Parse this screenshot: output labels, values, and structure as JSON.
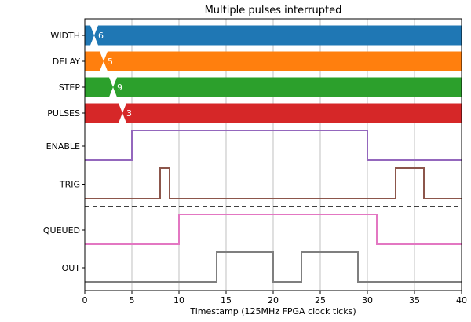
{
  "chart_data": {
    "type": "timing-diagram",
    "title": "Multiple pulses interrupted",
    "xlabel": "Timestamp (125MHz FPGA clock ticks)",
    "xlim": [
      0,
      40
    ],
    "xticks": [
      0,
      5,
      10,
      15,
      20,
      25,
      30,
      35,
      40
    ],
    "grid_x": true,
    "buses": [
      {
        "name": "WIDTH",
        "color": "#1f77b4",
        "transition_x": 1,
        "value": "6"
      },
      {
        "name": "DELAY",
        "color": "#ff7f0e",
        "transition_x": 2,
        "value": "5"
      },
      {
        "name": "STEP",
        "color": "#2ca02c",
        "transition_x": 3,
        "value": "9"
      },
      {
        "name": "PULSES",
        "color": "#d62728",
        "transition_x": 4,
        "value": "3"
      }
    ],
    "signals_before_divider": [
      {
        "name": "ENABLE",
        "color": "#9467bd",
        "steps": [
          [
            0,
            0
          ],
          [
            5,
            1
          ],
          [
            30,
            0
          ],
          [
            40,
            0
          ]
        ]
      },
      {
        "name": "TRIG",
        "color": "#8c564b",
        "steps": [
          [
            0,
            0
          ],
          [
            8,
            1
          ],
          [
            9,
            0
          ],
          [
            33,
            1
          ],
          [
            36,
            0
          ],
          [
            40,
            0
          ]
        ]
      }
    ],
    "signals_after_divider": [
      {
        "name": "QUEUED",
        "color": "#e377c2",
        "steps": [
          [
            0,
            0
          ],
          [
            10,
            1
          ],
          [
            31,
            0
          ],
          [
            40,
            0
          ]
        ]
      },
      {
        "name": "OUT",
        "color": "#7f7f7f",
        "steps": [
          [
            0,
            0
          ],
          [
            14,
            1
          ],
          [
            20,
            0
          ],
          [
            23,
            1
          ],
          [
            29,
            0
          ],
          [
            40,
            0
          ]
        ]
      }
    ]
  }
}
